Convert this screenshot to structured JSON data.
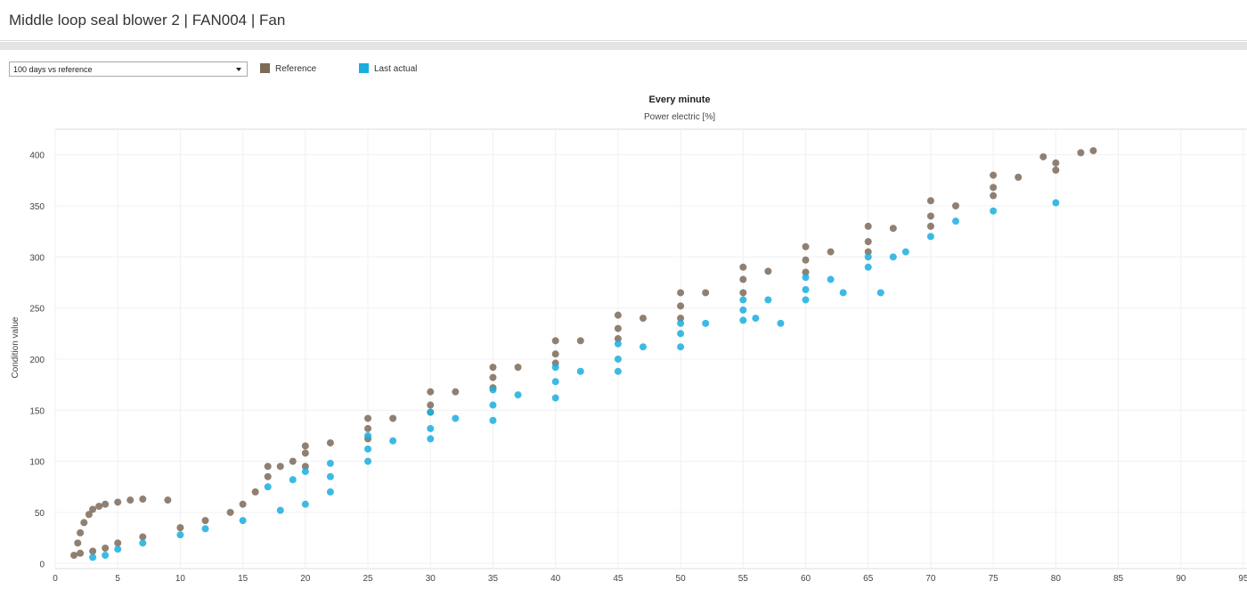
{
  "header": {
    "title": "Middle loop seal blower 2 | FAN004 | Fan"
  },
  "controls": {
    "period_select": "100 days vs reference"
  },
  "chart_data": {
    "type": "scatter",
    "title": "Every minute",
    "subtitle": "Power electric [%]",
    "y_label": "Condition value",
    "xlim": [
      0,
      96
    ],
    "ylim": [
      -5,
      425
    ],
    "xticks": [
      0,
      5,
      10,
      15,
      20,
      25,
      30,
      35,
      40,
      45,
      50,
      55,
      60,
      65,
      70,
      75,
      80,
      85,
      90,
      95
    ],
    "yticks": [
      0,
      50,
      100,
      150,
      200,
      250,
      300,
      350,
      400
    ],
    "grid": true,
    "series": [
      {
        "name": "Reference",
        "color": "#7d6a58",
        "x": [
          1.5,
          1.8,
          2,
          2.3,
          2.7,
          3,
          3.5,
          4,
          5,
          6,
          7,
          9,
          2,
          3,
          4,
          5,
          7,
          10,
          12,
          14,
          15,
          16,
          17,
          18,
          19,
          20,
          22,
          25,
          27,
          30,
          32,
          35,
          37,
          40,
          42,
          45,
          47,
          50,
          52,
          55,
          57,
          60,
          62,
          65,
          67,
          70,
          72,
          75,
          77,
          80,
          82,
          83,
          17,
          20,
          25,
          30,
          35,
          40,
          45,
          50,
          55,
          60,
          65,
          70,
          75,
          79,
          20,
          25,
          30,
          35,
          40,
          45,
          50,
          55,
          60,
          65,
          70,
          75,
          80
        ],
        "values": [
          8,
          20,
          30,
          40,
          48,
          53,
          56,
          58,
          60,
          62,
          63,
          62,
          10,
          12,
          15,
          20,
          26,
          35,
          42,
          50,
          58,
          70,
          85,
          95,
          100,
          108,
          118,
          132,
          142,
          155,
          168,
          182,
          192,
          205,
          218,
          230,
          240,
          252,
          265,
          278,
          286,
          297,
          305,
          315,
          328,
          340,
          350,
          368,
          378,
          392,
          402,
          404,
          95,
          115,
          142,
          168,
          192,
          218,
          243,
          265,
          290,
          310,
          330,
          355,
          380,
          398,
          95,
          122,
          148,
          172,
          196,
          220,
          240,
          265,
          285,
          305,
          330,
          360,
          385
        ]
      },
      {
        "name": "Last actual",
        "color": "#1aaee0",
        "x": [
          3,
          4,
          5,
          7,
          10,
          12,
          15,
          18,
          20,
          22,
          17,
          19,
          20,
          22,
          25,
          27,
          30,
          32,
          35,
          37,
          40,
          42,
          45,
          47,
          50,
          52,
          55,
          57,
          60,
          62,
          65,
          67,
          68,
          25,
          30,
          35,
          40,
          45,
          50,
          55,
          60,
          65,
          25,
          30,
          35,
          40,
          45,
          50,
          55,
          60,
          63,
          70,
          72,
          75,
          80,
          56,
          66,
          58,
          22
        ],
        "values": [
          6,
          8,
          14,
          20,
          28,
          34,
          42,
          52,
          58,
          70,
          75,
          82,
          90,
          98,
          112,
          120,
          132,
          142,
          155,
          165,
          178,
          188,
          200,
          212,
          225,
          235,
          248,
          258,
          268,
          278,
          290,
          300,
          305,
          125,
          148,
          170,
          192,
          215,
          235,
          258,
          280,
          300,
          100,
          122,
          140,
          162,
          188,
          212,
          238,
          258,
          265,
          320,
          335,
          345,
          353,
          240,
          265,
          235,
          85
        ]
      }
    ]
  }
}
